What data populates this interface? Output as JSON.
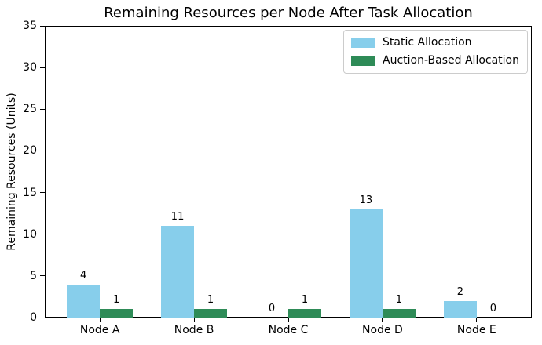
{
  "chart_data": {
    "type": "bar",
    "title": "Remaining Resources per Node After Task Allocation",
    "xlabel": "",
    "ylabel": "Remaining Resources (Units)",
    "categories": [
      "Node A",
      "Node B",
      "Node C",
      "Node D",
      "Node E"
    ],
    "series": [
      {
        "name": "Static Allocation",
        "color": "#87CEEB",
        "values": [
          4,
          11,
          0,
          13,
          2
        ]
      },
      {
        "name": "Auction-Based Allocation",
        "color": "#2E8B57",
        "values": [
          1,
          1,
          1,
          1,
          0
        ]
      }
    ],
    "ylim": [
      0,
      35
    ],
    "yticks": [
      0,
      5,
      10,
      15,
      20,
      25,
      30,
      35
    ],
    "bar_value_labels": true,
    "grid": false,
    "legend_position": "upper right",
    "colors": {
      "background": "#ffffff",
      "axis": "#000000",
      "text": "#000000",
      "legend_border": "#cccccc"
    }
  }
}
